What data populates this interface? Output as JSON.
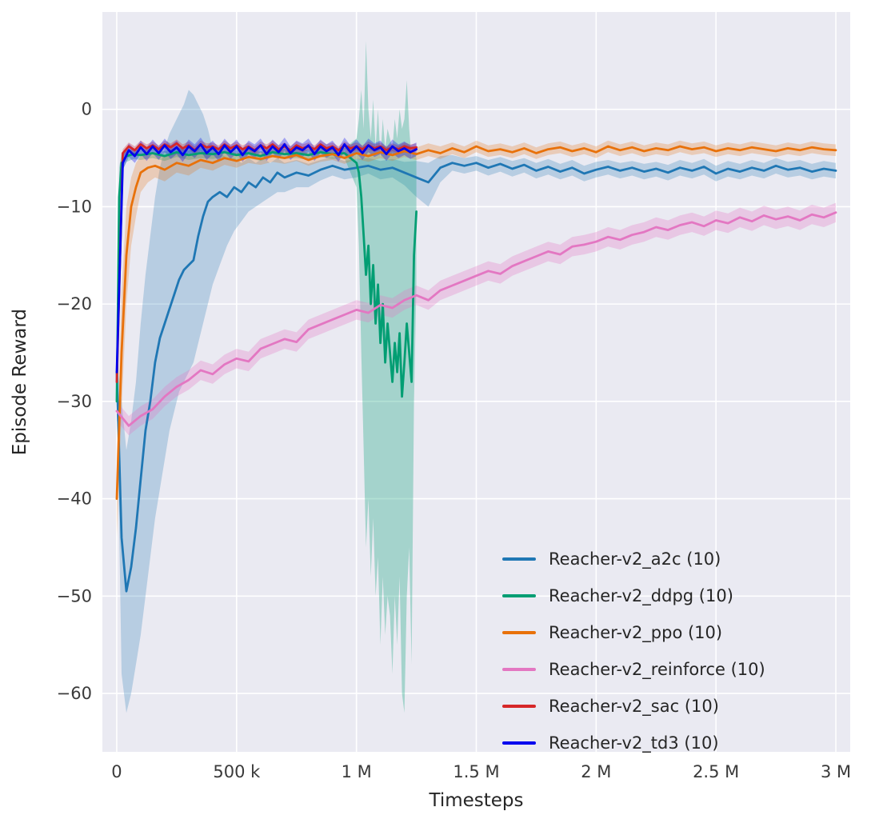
{
  "figure": {
    "xlabel": "Timesteps",
    "ylabel": "Episode Reward"
  },
  "chart_data": {
    "type": "line",
    "title": "",
    "xlabel": "Timesteps",
    "ylabel": "Episode Reward",
    "grid": true,
    "legend_position": "lower right",
    "plot_bg": "#eaeaf2",
    "grid_color": "#ffffff",
    "tick_color": "#3a3a3a",
    "text_color": "#262626",
    "x_unit_multiplier": 1000,
    "xlim": [
      -60,
      3060
    ],
    "ylim": [
      -66,
      10
    ],
    "xticks": {
      "values": [
        0,
        500,
        1000,
        1500,
        2000,
        2500,
        3000
      ],
      "labels": [
        "0",
        "500 k",
        "1 M",
        "1.5 M",
        "2 M",
        "2.5 M",
        "3 M"
      ]
    },
    "yticks": {
      "values": [
        0,
        -10,
        -20,
        -30,
        -40,
        -50,
        -60
      ],
      "labels": [
        "0",
        "−10",
        "−20",
        "−30",
        "−40",
        "−50",
        "−60"
      ]
    },
    "series": [
      {
        "name": "a2c",
        "label": "Reacher-v2_a2c (10)",
        "color": "#1f77b4",
        "band_opacity": 0.25,
        "x": [
          0,
          20,
          40,
          60,
          80,
          100,
          120,
          140,
          160,
          180,
          200,
          220,
          240,
          260,
          280,
          300,
          320,
          340,
          360,
          380,
          400,
          430,
          460,
          490,
          520,
          550,
          580,
          610,
          640,
          670,
          700,
          750,
          800,
          850,
          900,
          950,
          1000,
          1050,
          1100,
          1150,
          1200,
          1250,
          1300,
          1350,
          1400,
          1450,
          1500,
          1550,
          1600,
          1650,
          1700,
          1750,
          1800,
          1850,
          1900,
          1950,
          2000,
          2050,
          2100,
          2150,
          2200,
          2250,
          2300,
          2350,
          2400,
          2450,
          2500,
          2550,
          2600,
          2650,
          2700,
          2750,
          2800,
          2850,
          2900,
          2950,
          3000
        ],
        "y": [
          -27,
          -44,
          -49.5,
          -47,
          -43,
          -38,
          -33,
          -30,
          -26,
          -23.5,
          -22,
          -20.5,
          -19,
          -17.5,
          -16.5,
          -16,
          -15.5,
          -13,
          -11,
          -9.5,
          -9,
          -8.5,
          -9,
          -8,
          -8.5,
          -7.5,
          -8,
          -7,
          -7.5,
          -6.5,
          -7,
          -6.5,
          -6.8,
          -6.2,
          -5.8,
          -6.2,
          -6,
          -5.8,
          -6.2,
          -6,
          -6.5,
          -7,
          -7.5,
          -6,
          -5.5,
          -5.8,
          -5.5,
          -6,
          -5.6,
          -6.1,
          -5.7,
          -6.3,
          -5.9,
          -6.4,
          -6,
          -6.6,
          -6.2,
          -5.9,
          -6.3,
          -6,
          -6.4,
          -6.1,
          -6.5,
          -6,
          -6.3,
          -5.9,
          -6.6,
          -6.1,
          -6.4,
          -6,
          -6.3,
          -5.8,
          -6.2,
          -6,
          -6.4,
          -6.1,
          -6.3
        ],
        "band_lo": [
          -28,
          -58,
          -62,
          -60,
          -57,
          -54,
          -50,
          -46,
          -42,
          -39,
          -36,
          -33,
          -31,
          -29,
          -28,
          -27,
          -26,
          -24,
          -22,
          -20,
          -18,
          -16,
          -14,
          -12.5,
          -11.5,
          -10.5,
          -10,
          -9.5,
          -9,
          -8.5,
          -8.5,
          -8,
          -8,
          -7.3,
          -6.8,
          -7.2,
          -7,
          -6.6,
          -7.2,
          -7,
          -7.8,
          -9,
          -10,
          -7.5,
          -6.3,
          -6.6,
          -6.3,
          -6.8,
          -6.4,
          -6.9,
          -6.5,
          -7.1,
          -6.7,
          -7.2,
          -6.8,
          -7.4,
          -7,
          -6.7,
          -7.1,
          -6.8,
          -7.2,
          -6.9,
          -7.3,
          -6.8,
          -7.1,
          -6.7,
          -7.4,
          -6.9,
          -7.2,
          -6.8,
          -7.1,
          -6.6,
          -7,
          -6.8,
          -7.2,
          -6.9,
          -7.1
        ],
        "band_hi": [
          -26,
          -30,
          -35,
          -32,
          -28,
          -22,
          -17,
          -13,
          -9,
          -6,
          -4,
          -2.5,
          -1.5,
          -0.5,
          0.5,
          2,
          1.5,
          0.5,
          -0.5,
          -2,
          -4,
          -4.5,
          -5,
          -5,
          -5.5,
          -5,
          -5.5,
          -5,
          -5.5,
          -5,
          -5.5,
          -5.2,
          -5.6,
          -5.2,
          -4.9,
          -5.3,
          -5.1,
          -5,
          -5.3,
          -5.1,
          -5.4,
          -5.3,
          -5.5,
          -4.8,
          -4.7,
          -5,
          -4.8,
          -5.2,
          -4.9,
          -5.3,
          -5,
          -5.5,
          -5.1,
          -5.6,
          -5.2,
          -5.8,
          -5.4,
          -5.2,
          -5.5,
          -5.3,
          -5.6,
          -5.4,
          -5.7,
          -5.2,
          -5.5,
          -5.1,
          -5.8,
          -5.3,
          -5.6,
          -5.2,
          -5.5,
          -5,
          -5.4,
          -5.2,
          -5.6,
          -5.3,
          -5.5
        ]
      },
      {
        "name": "ddpg",
        "label": "Reacher-v2_ddpg (10)",
        "color": "#029e73",
        "band_opacity": 0.3,
        "x": [
          0,
          10,
          20,
          40,
          70,
          100,
          150,
          200,
          250,
          300,
          350,
          400,
          450,
          500,
          550,
          600,
          650,
          700,
          750,
          800,
          850,
          900,
          950,
          1000,
          1010,
          1020,
          1030,
          1040,
          1050,
          1060,
          1070,
          1080,
          1090,
          1100,
          1110,
          1120,
          1130,
          1140,
          1150,
          1160,
          1170,
          1180,
          1190,
          1200,
          1210,
          1220,
          1230,
          1240,
          1250
        ],
        "y": [
          -30,
          -9,
          -5.5,
          -4.8,
          -4.6,
          -4.7,
          -4.5,
          -4.8,
          -4.4,
          -4.7,
          -4.5,
          -4.6,
          -4.4,
          -4.7,
          -4.5,
          -4.8,
          -4.4,
          -4.6,
          -4.5,
          -4.7,
          -4.4,
          -4.6,
          -4.5,
          -5.5,
          -6.5,
          -9,
          -13,
          -17,
          -14,
          -20,
          -16,
          -22,
          -18,
          -24,
          -20,
          -26,
          -22,
          -25,
          -28,
          -24,
          -27,
          -23,
          -29.5,
          -26,
          -22,
          -25,
          -28,
          -15,
          -10.5
        ],
        "band_lo": [
          -32,
          -12,
          -6.5,
          -5.4,
          -5.1,
          -5.2,
          -5,
          -5.3,
          -4.9,
          -5.2,
          -5,
          -5.1,
          -4.9,
          -5.2,
          -5,
          -5.3,
          -4.9,
          -5.1,
          -5,
          -5.2,
          -4.9,
          -5.1,
          -5,
          -8,
          -14,
          -25,
          -35,
          -45,
          -40,
          -48,
          -42,
          -50,
          -46,
          -55,
          -48,
          -54,
          -50,
          -52,
          -58,
          -50,
          -55,
          -48,
          -60,
          -62,
          -50,
          -45,
          -57,
          -30,
          -18
        ],
        "band_hi": [
          -28,
          -6,
          -4.5,
          -4.2,
          -4.1,
          -4.2,
          -4,
          -4.3,
          -3.9,
          -4.2,
          -4,
          -4.1,
          -3.9,
          -4.2,
          -4,
          -4.3,
          -3.9,
          -4.1,
          -4,
          -4.2,
          -3.9,
          -4.1,
          -4,
          -3,
          -1,
          2,
          -2,
          7,
          0,
          -3,
          1,
          -4,
          0,
          -5,
          -1,
          -4,
          -2,
          -3,
          -4,
          -1,
          -3,
          0,
          -2,
          -1,
          3,
          -2,
          -5,
          -4,
          -5
        ]
      },
      {
        "name": "ppo",
        "label": "Reacher-v2_ppo (10)",
        "color": "#e8710a",
        "band_opacity": 0.25,
        "x": [
          0,
          20,
          40,
          60,
          80,
          100,
          130,
          160,
          200,
          250,
          300,
          350,
          400,
          450,
          500,
          550,
          600,
          650,
          700,
          750,
          800,
          850,
          900,
          950,
          1000,
          1050,
          1100,
          1150,
          1200,
          1250,
          1300,
          1350,
          1400,
          1450,
          1500,
          1550,
          1600,
          1650,
          1700,
          1750,
          1800,
          1850,
          1900,
          1950,
          2000,
          2050,
          2100,
          2150,
          2200,
          2250,
          2300,
          2350,
          2400,
          2450,
          2500,
          2550,
          2600,
          2650,
          2700,
          2750,
          2800,
          2850,
          2900,
          2950,
          3000
        ],
        "y": [
          -40,
          -25,
          -15,
          -10,
          -8,
          -6.5,
          -6,
          -5.8,
          -6.2,
          -5.5,
          -5.8,
          -5.2,
          -5.5,
          -5,
          -5.3,
          -4.9,
          -5.1,
          -4.8,
          -5,
          -4.7,
          -5.2,
          -4.8,
          -4.6,
          -5,
          -4.5,
          -4.8,
          -4.4,
          -4.7,
          -4.3,
          -4.6,
          -4.2,
          -4.5,
          -4,
          -4.4,
          -3.8,
          -4.3,
          -4.1,
          -4.4,
          -4,
          -4.5,
          -4.1,
          -3.9,
          -4.3,
          -4,
          -4.4,
          -3.8,
          -4.2,
          -3.9,
          -4.3,
          -4,
          -4.2,
          -3.8,
          -4.1,
          -3.9,
          -4.3,
          -4,
          -4.2,
          -3.9,
          -4.1,
          -4.3,
          -4,
          -4.2,
          -3.9,
          -4.1,
          -4.2
        ],
        "band_lo": [
          -44,
          -31,
          -20,
          -14,
          -11,
          -8.5,
          -7.5,
          -7,
          -7.4,
          -6.5,
          -6.8,
          -6,
          -6.3,
          -5.7,
          -6,
          -5.5,
          -5.7,
          -5.4,
          -5.6,
          -5.3,
          -5.8,
          -5.4,
          -5.2,
          -5.6,
          -5.1,
          -5.4,
          -5,
          -5.3,
          -4.9,
          -5.2,
          -4.8,
          -5.1,
          -4.6,
          -5,
          -4.4,
          -4.9,
          -4.7,
          -5,
          -4.6,
          -5.1,
          -4.7,
          -4.5,
          -4.9,
          -4.6,
          -5,
          -4.4,
          -4.8,
          -4.5,
          -4.9,
          -4.6,
          -4.8,
          -4.4,
          -4.7,
          -4.5,
          -4.9,
          -4.6,
          -4.8,
          -4.5,
          -4.7,
          -4.9,
          -4.6,
          -4.8,
          -4.5,
          -4.7,
          -4.8
        ],
        "band_hi": [
          -36,
          -19,
          -10,
          -7,
          -5.5,
          -4.8,
          -4.6,
          -4.5,
          -4.9,
          -4.4,
          -4.7,
          -4.3,
          -4.6,
          -4.2,
          -4.5,
          -4.2,
          -4.4,
          -4.1,
          -4.3,
          -4,
          -4.5,
          -4.1,
          -3.9,
          -4.3,
          -3.8,
          -4.1,
          -3.7,
          -4,
          -3.6,
          -3.9,
          -3.5,
          -3.8,
          -3.4,
          -3.8,
          -3.2,
          -3.7,
          -3.5,
          -3.8,
          -3.4,
          -3.9,
          -3.5,
          -3.3,
          -3.7,
          -3.4,
          -3.8,
          -3.2,
          -3.6,
          -3.3,
          -3.7,
          -3.4,
          -3.6,
          -3.2,
          -3.5,
          -3.3,
          -3.7,
          -3.4,
          -3.6,
          -3.3,
          -3.5,
          -3.7,
          -3.4,
          -3.6,
          -3.3,
          -3.5,
          -3.6
        ]
      },
      {
        "name": "reinforce",
        "label": "Reacher-v2_reinforce (10)",
        "color": "#e377c2",
        "band_opacity": 0.3,
        "band_halfwidth": 1.0,
        "x": [
          0,
          50,
          100,
          150,
          200,
          250,
          300,
          350,
          400,
          450,
          500,
          550,
          600,
          650,
          700,
          750,
          800,
          850,
          900,
          950,
          1000,
          1050,
          1100,
          1150,
          1200,
          1250,
          1300,
          1350,
          1400,
          1450,
          1500,
          1550,
          1600,
          1650,
          1700,
          1750,
          1800,
          1850,
          1900,
          1950,
          2000,
          2050,
          2100,
          2150,
          2200,
          2250,
          2300,
          2350,
          2400,
          2450,
          2500,
          2550,
          2600,
          2650,
          2700,
          2750,
          2800,
          2850,
          2900,
          2950,
          3000
        ],
        "y": [
          -31,
          -32.5,
          -31.5,
          -30.8,
          -29.5,
          -28.5,
          -27.8,
          -26.8,
          -27.2,
          -26.2,
          -25.6,
          -25.9,
          -24.6,
          -24.1,
          -23.6,
          -23.9,
          -22.6,
          -22.1,
          -21.6,
          -21.1,
          -20.6,
          -20.9,
          -20.1,
          -20.4,
          -19.6,
          -19.1,
          -19.6,
          -18.6,
          -18.1,
          -17.6,
          -17.1,
          -16.6,
          -16.9,
          -16.1,
          -15.6,
          -15.1,
          -14.6,
          -14.9,
          -14.1,
          -13.9,
          -13.6,
          -13.1,
          -13.4,
          -12.9,
          -12.6,
          -12.1,
          -12.4,
          -11.9,
          -11.6,
          -12,
          -11.4,
          -11.7,
          -11.1,
          -11.5,
          -10.9,
          -11.3,
          -11,
          -11.4,
          -10.8,
          -11.1,
          -10.6
        ]
      },
      {
        "name": "sac",
        "label": "Reacher-v2_sac (10)",
        "color": "#d62728",
        "band_opacity": 0.3,
        "band_halfwidth": 0.4,
        "x": [
          0,
          25,
          50,
          75,
          100,
          125,
          150,
          175,
          200,
          225,
          250,
          275,
          300,
          325,
          350,
          375,
          400,
          425,
          450,
          475,
          500,
          525,
          550,
          575,
          600,
          625,
          650,
          675,
          700,
          725,
          750,
          775,
          800,
          825,
          850,
          875,
          900,
          925,
          950,
          975,
          1000,
          1025,
          1050,
          1075,
          1100,
          1125,
          1150,
          1175,
          1200,
          1225,
          1250
        ],
        "y": [
          -28,
          -4.5,
          -3.8,
          -4.2,
          -3.6,
          -4,
          -3.7,
          -4.1,
          -3.6,
          -3.9,
          -3.5,
          -4,
          -3.7,
          -4.2,
          -3.6,
          -3.9,
          -3.8,
          -4.1,
          -3.6,
          -4,
          -3.7,
          -4.1,
          -3.8,
          -4.2,
          -3.7,
          -4,
          -3.6,
          -4.1,
          -3.8,
          -4.2,
          -3.7,
          -4,
          -3.8,
          -4.1,
          -3.6,
          -4,
          -3.8,
          -4.2,
          -3.7,
          -4,
          -3.8,
          -4.1,
          -3.7,
          -4,
          -3.8,
          -4.2,
          -3.9,
          -4.1,
          -3.8,
          -4,
          -3.9
        ]
      },
      {
        "name": "td3",
        "label": "Reacher-v2_td3 (10)",
        "color": "#0000ee",
        "band_opacity": 0.3,
        "band_halfwidth": 0.7,
        "x": [
          0,
          25,
          50,
          75,
          100,
          125,
          150,
          175,
          200,
          225,
          250,
          275,
          300,
          325,
          350,
          375,
          400,
          425,
          450,
          475,
          500,
          525,
          550,
          575,
          600,
          625,
          650,
          675,
          700,
          725,
          750,
          775,
          800,
          825,
          850,
          875,
          900,
          925,
          950,
          975,
          1000,
          1025,
          1050,
          1075,
          1100,
          1125,
          1150,
          1175,
          1200,
          1225,
          1250
        ],
        "y": [
          -27,
          -5.5,
          -4.2,
          -4.8,
          -3.9,
          -4.6,
          -3.8,
          -4.5,
          -3.7,
          -4.4,
          -3.9,
          -4.7,
          -3.8,
          -4.3,
          -3.6,
          -4.5,
          -3.9,
          -4.6,
          -3.7,
          -4.4,
          -3.8,
          -4.7,
          -3.9,
          -4.3,
          -3.7,
          -4.6,
          -3.8,
          -4.4,
          -3.6,
          -4.5,
          -3.9,
          -4.2,
          -3.7,
          -4.6,
          -3.8,
          -4.3,
          -3.9,
          -4.7,
          -3.6,
          -4.4,
          -3.8,
          -4.5,
          -3.7,
          -4.2,
          -3.9,
          -4.6,
          -3.8,
          -4.3,
          -4,
          -4.4,
          -4.1
        ]
      }
    ]
  }
}
